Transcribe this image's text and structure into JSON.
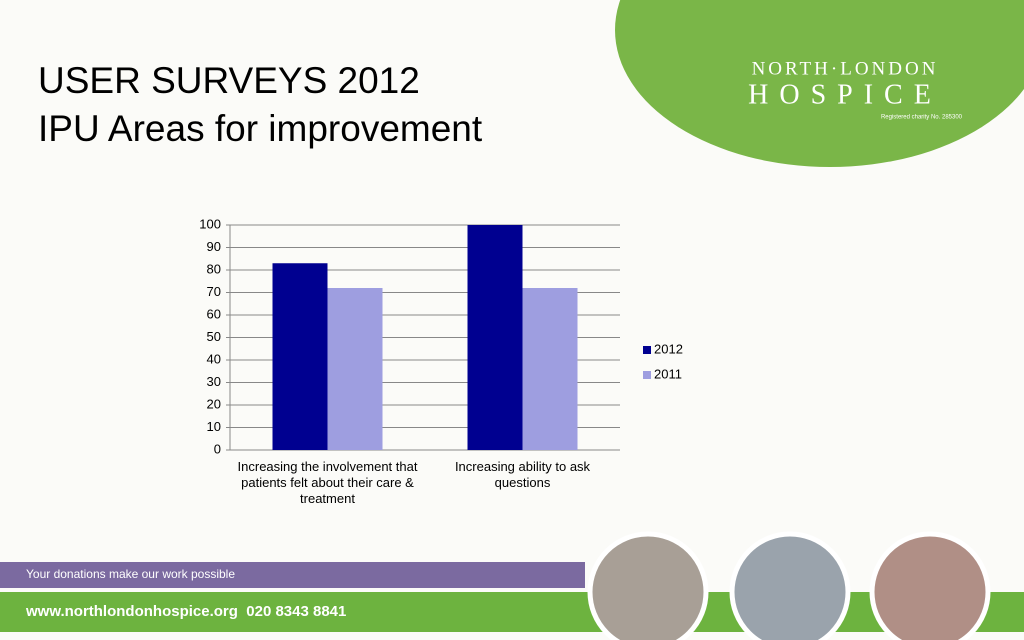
{
  "header": {
    "title_line1": "USER SURVEYS 2012",
    "title_line2": "IPU Areas for improvement",
    "logo_line1": "NORTH·LONDON",
    "logo_line2": "HOSPICE",
    "logo_note": "Registered charity No. 285300"
  },
  "chart_data": {
    "type": "bar",
    "categories": [
      "Increasing the involvement that patients felt about their care & treatment",
      "Increasing ability to ask questions"
    ],
    "series": [
      {
        "name": "2012",
        "color": "#000090",
        "values": [
          83,
          100
        ]
      },
      {
        "name": "2011",
        "color": "#9e9ee0",
        "values": [
          72,
          72
        ]
      }
    ],
    "ylim": [
      0,
      100
    ],
    "yticks": [
      0,
      10,
      20,
      30,
      40,
      50,
      60,
      70,
      80,
      90,
      100
    ],
    "grid": true,
    "legend": "right"
  },
  "footer": {
    "tagline": "Your donations make our work possible",
    "contact": "www.northlondonhospice.org  020 8343 8841"
  }
}
